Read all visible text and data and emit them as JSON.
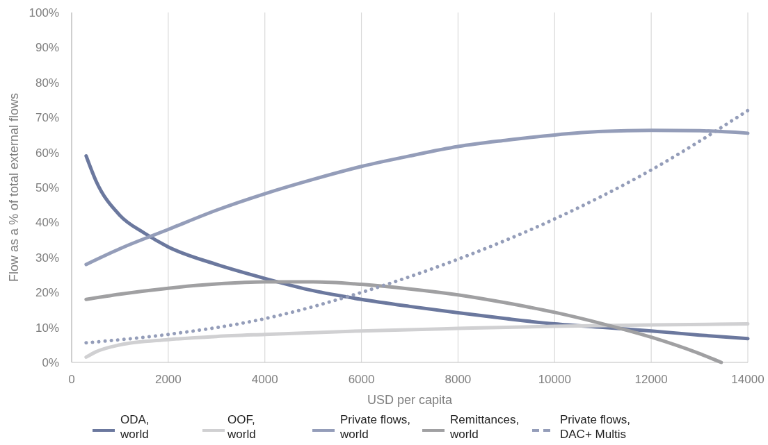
{
  "chart_data": {
    "type": "line",
    "xlabel": "USD per capita",
    "ylabel": "Flow as a % of total external flows",
    "xlim": [
      0,
      14000
    ],
    "xticks": [
      0,
      2000,
      4000,
      6000,
      8000,
      10000,
      12000,
      14000
    ],
    "ylim": [
      0,
      100
    ],
    "yticks": [
      {
        "value": 0,
        "label": "0%"
      },
      {
        "value": 10,
        "label": "10%"
      },
      {
        "value": 20,
        "label": "20%"
      },
      {
        "value": 30,
        "label": "30%"
      },
      {
        "value": 40,
        "label": "40%"
      },
      {
        "value": 50,
        "label": "50%"
      },
      {
        "value": 60,
        "label": "60%"
      },
      {
        "value": 70,
        "label": "70%"
      },
      {
        "value": 80,
        "label": "80%"
      },
      {
        "value": 90,
        "label": "90%"
      },
      {
        "value": 100,
        "label": "100%"
      }
    ],
    "grid": "x",
    "legend": "bottom",
    "series": [
      {
        "name": "ODA, world",
        "color": "#6b789e",
        "x": [
          300,
          500,
          1000,
          1500,
          2000,
          3000,
          4000,
          5000,
          6000,
          7000,
          8000,
          9000,
          10000,
          11000,
          12000,
          13000,
          14000
        ],
        "values": [
          59,
          52,
          42,
          37,
          33,
          28,
          24,
          20.5,
          18,
          16,
          14.2,
          12.5,
          11,
          10,
          9,
          7.8,
          6.8
        ]
      },
      {
        "name": "OOF, world",
        "color": "#d0d0d2",
        "x": [
          300,
          500,
          1000,
          2000,
          3000,
          4000,
          6000,
          8000,
          10000,
          12000,
          14000
        ],
        "values": [
          1.5,
          3,
          5,
          6.5,
          7.4,
          8,
          9,
          9.7,
          10.3,
          10.7,
          11
        ]
      },
      {
        "name": "Private flows, world",
        "color": "#949db9",
        "x": [
          300,
          1000,
          2000,
          3000,
          4000,
          5000,
          6000,
          7000,
          8000,
          9000,
          10000,
          11000,
          12000,
          13000,
          14000
        ],
        "values": [
          28,
          32.5,
          38,
          43.5,
          48.2,
          52.3,
          56,
          59,
          61.7,
          63.5,
          65,
          66,
          66.3,
          66.2,
          65.5
        ]
      },
      {
        "name": "Remittances, world",
        "color": "#a0a0a2",
        "x": [
          300,
          1000,
          2000,
          3000,
          4000,
          5000,
          6000,
          7000,
          8000,
          9000,
          10000,
          11000,
          12000,
          13000,
          13450
        ],
        "values": [
          18,
          19.5,
          21.2,
          22.4,
          23,
          23,
          22.3,
          21,
          19.3,
          17,
          14.3,
          11,
          7.2,
          2.5,
          0
        ]
      },
      {
        "name": "Private flows, DAC+ Multis",
        "color": "#949db9",
        "line_style": "dotted",
        "x": [
          300,
          2000,
          4000,
          6000,
          8000,
          10000,
          12000,
          14000
        ],
        "values": [
          5.6,
          8,
          12.5,
          20,
          29.5,
          41,
          55,
          72
        ]
      }
    ]
  }
}
